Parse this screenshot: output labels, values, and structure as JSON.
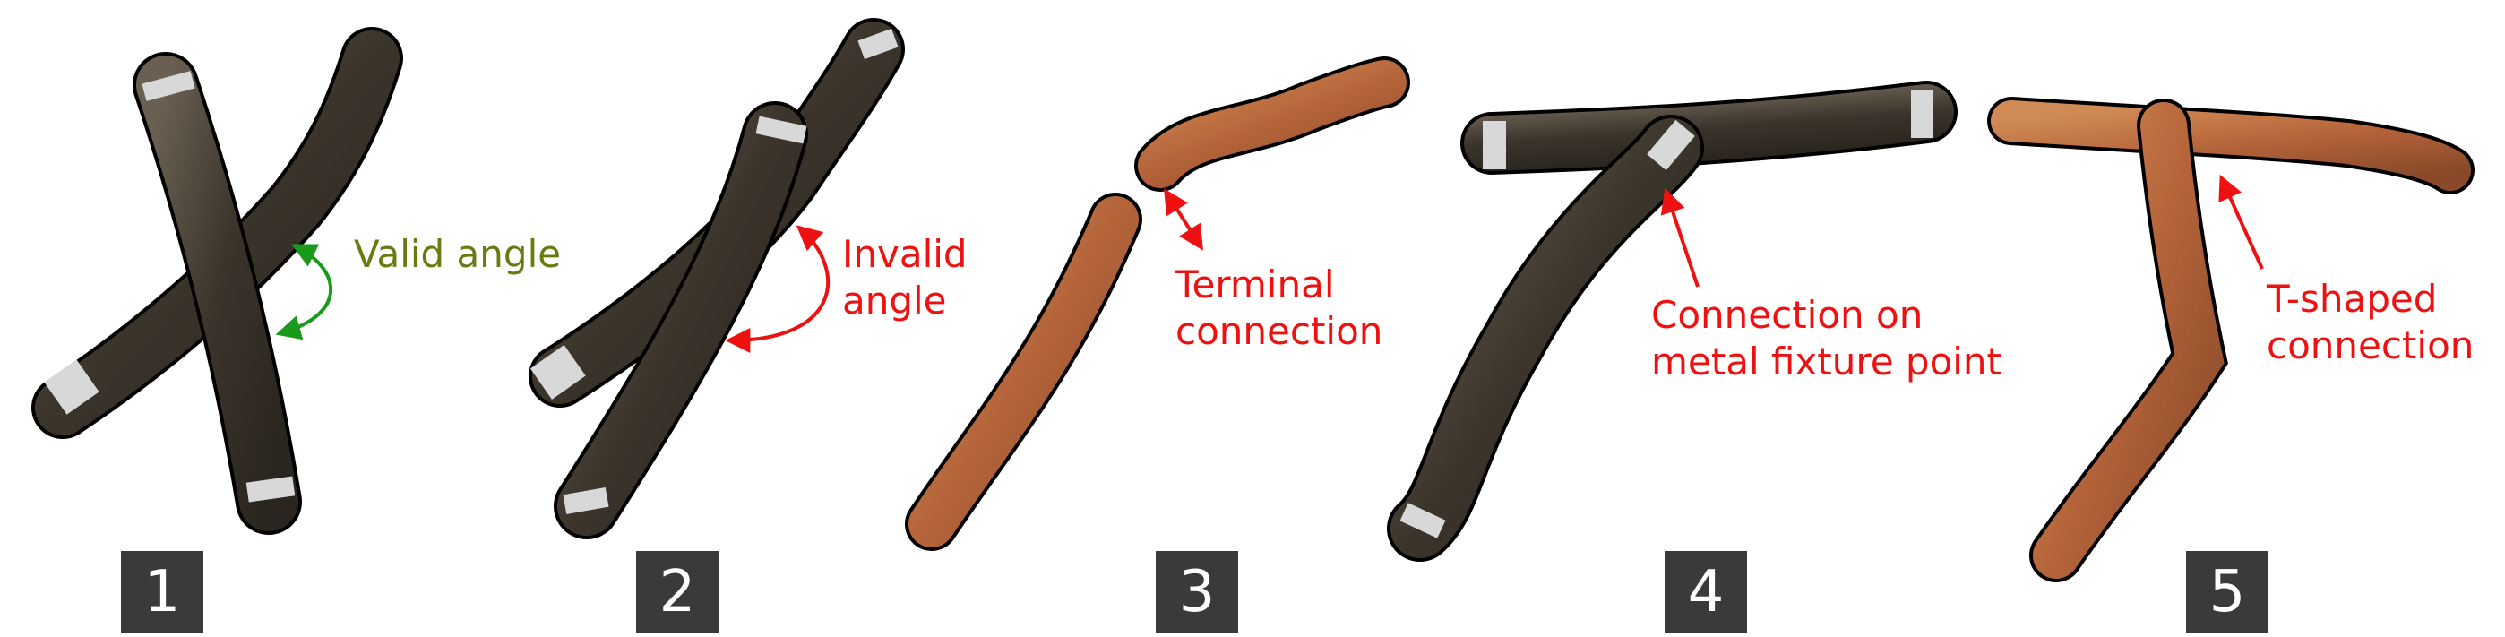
{
  "colors": {
    "bark_dark": "#3b342b",
    "bark_light": "#5f5547",
    "bark_brown": "#b5643a",
    "bark_brown_light": "#d08a55",
    "fixture_metal": "#d8d8d8",
    "outline": "#000000",
    "valid": "#1a9a1a",
    "valid_text": "#6b7a10",
    "invalid": "#ee1111",
    "badge_bg": "#3a3a3a",
    "badge_text": "#ffffff"
  },
  "panels": [
    {
      "number": "1",
      "annotation": [
        "Valid angle"
      ],
      "annotation_color": "valid_text",
      "arrow_color": "valid",
      "arrow_type": "double-arc"
    },
    {
      "number": "2",
      "annotation": [
        "Invalid",
        "angle"
      ],
      "annotation_color": "invalid",
      "arrow_color": "invalid",
      "arrow_type": "double-arc"
    },
    {
      "number": "3",
      "annotation": [
        "Terminal",
        "connection"
      ],
      "annotation_color": "invalid",
      "arrow_color": "invalid",
      "arrow_type": "double-straight"
    },
    {
      "number": "4",
      "annotation": [
        "Connection on",
        "metal fixture point"
      ],
      "annotation_color": "invalid",
      "arrow_color": "invalid",
      "arrow_type": "single"
    },
    {
      "number": "5",
      "annotation": [
        "T-shaped",
        "connection"
      ],
      "annotation_color": "invalid",
      "arrow_color": "invalid",
      "arrow_type": "single"
    }
  ]
}
